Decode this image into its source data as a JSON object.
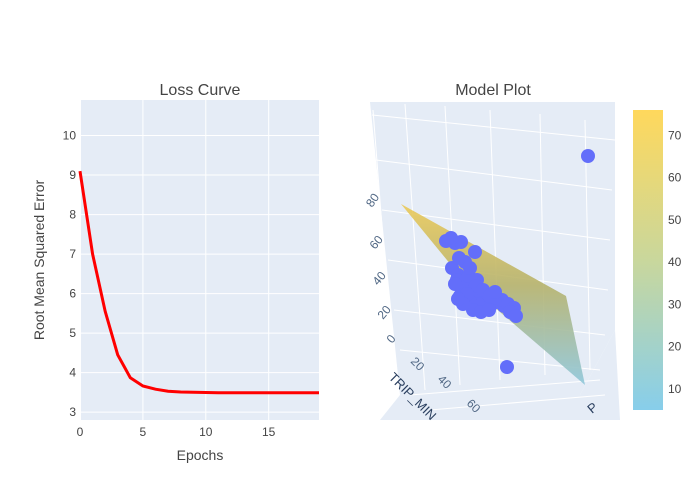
{
  "chart_data": [
    {
      "type": "line",
      "title": "Loss Curve",
      "xlabel": "Epochs",
      "ylabel": "Root Mean Squared Error",
      "xlim": [
        0,
        19
      ],
      "ylim": [
        2.8,
        10.9
      ],
      "xticks": [
        0,
        5,
        10,
        15
      ],
      "yticks": [
        3,
        4,
        5,
        6,
        7,
        8,
        9,
        10
      ],
      "grid": true,
      "series": [
        {
          "color": "#ff0000",
          "x": [
            0,
            1,
            2,
            3,
            4,
            5,
            6,
            7,
            8,
            9,
            10,
            11,
            12,
            13,
            14,
            15,
            16,
            17,
            18,
            19
          ],
          "y": [
            9.1,
            7.0,
            5.55,
            4.45,
            3.87,
            3.66,
            3.58,
            3.53,
            3.51,
            3.5,
            3.495,
            3.49,
            3.49,
            3.49,
            3.49,
            3.49,
            3.49,
            3.49,
            3.49,
            3.49
          ]
        }
      ]
    },
    {
      "type": "scatter",
      "subtype": "3d-scatter-with-surface",
      "title": "Model Plot",
      "axis_labels": {
        "x": "TRIP_MIN",
        "y": "TRIP_MIN",
        "z": ""
      },
      "x_ticks_visible": [
        "0",
        "20",
        "40",
        "60"
      ],
      "z_ticks_visible": [
        "0",
        "20",
        "40",
        "60",
        "80"
      ],
      "other_tick_fragment": "0",
      "other_axis_fragment": "P",
      "marker_color": "#636efa",
      "colorbar": {
        "ticks": [
          10,
          20,
          30,
          40,
          50,
          60,
          70
        ],
        "range": [
          5,
          76
        ],
        "colors": [
          "#87ceeb",
          "#ffd85c"
        ]
      }
    }
  ]
}
